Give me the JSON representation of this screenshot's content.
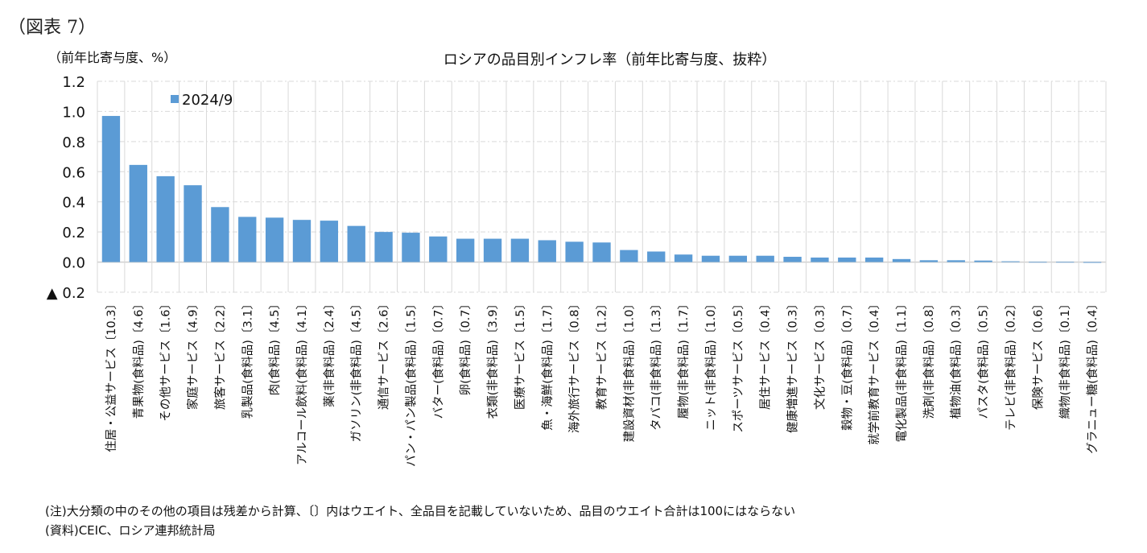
{
  "figure_label": "（図表 7）",
  "y_unit_label": "（前年比寄与度、%）",
  "notes": {
    "note": "(注)大分類の中のその他の項目は残差から計算、〔〕内はウエイト、全品目を記載していないため、品目のウエイト合計は100にはならない",
    "source": "(資料)CEIC、ロシア連邦統計局"
  },
  "colors": {
    "bar": "#5b9bd5",
    "grid": "#d9d9d9"
  },
  "chart_data": {
    "type": "bar",
    "title": "ロシアの品目別インフレ率（前年比寄与度、抜粋）",
    "xlabel": "",
    "ylabel": "（前年比寄与度、%）",
    "ylim": [
      -0.2,
      1.2
    ],
    "yticks": [
      1.2,
      1.0,
      0.8,
      0.6,
      0.4,
      0.2,
      0.0,
      -0.2
    ],
    "ytick_labels": [
      "1.2",
      "1.0",
      "0.8",
      "0.6",
      "0.4",
      "0.2",
      "0.0",
      "▲ 0.2"
    ],
    "grid": true,
    "legend_position": "top-left",
    "categories": [
      "住居・公益サービス〔10.3〕",
      "青果物(食料品)〔4.6〕",
      "その他サービス〔1.6〕",
      "家庭サービス〔4.9〕",
      "旅客サービス〔2.2〕",
      "乳製品(食料品)〔3.1〕",
      "肉(食料品)〔4.5〕",
      "アルコール飲料(食料品)〔4.1〕",
      "薬(非食料品)〔2.4〕",
      "ガソリン(非食料品)〔4.5〕",
      "通信サービス〔2.6〕",
      "パン・パン製品(食料品)〔1.5〕",
      "バター(食料品)〔0.7〕",
      "卵(食料品)〔0.7〕",
      "衣類(非食料品)〔3.9〕",
      "医療サービス〔1.5〕",
      "魚・海鮮(食料品)〔1.7〕",
      "海外旅行サービス〔0.8〕",
      "教育サービス〔1.2〕",
      "建設資材(非食料品)〔1.0〕",
      "タバコ(非食料品)〔1.3〕",
      "履物(非食料品)〔1.7〕",
      "ニット(非食料品)〔1.0〕",
      "スポーツサービス〔0.5〕",
      "居住サービス〔0.4〕",
      "健康増進サービス〔0.3〕",
      "文化サービス〔0.3〕",
      "穀物・豆(食料品)〔0.7〕",
      "就学前教育サービス〔0.4〕",
      "電化製品(非食料品)〔1.1〕",
      "洗剤(非食料品)〔0.8〕",
      "植物油(食料品)〔0.3〕",
      "パスタ(食料品)〔0.5〕",
      "テレビ(非食料品)〔0.2〕",
      "保険サービス〔0.6〕",
      "織物(非食料品)〔0.1〕",
      "グラニュー糖(食料品)〔0.4〕"
    ],
    "series": [
      {
        "name": "2024/9",
        "values": [
          0.97,
          0.645,
          0.57,
          0.51,
          0.365,
          0.3,
          0.295,
          0.28,
          0.275,
          0.24,
          0.2,
          0.195,
          0.17,
          0.155,
          0.155,
          0.155,
          0.145,
          0.135,
          0.13,
          0.08,
          0.07,
          0.05,
          0.042,
          0.042,
          0.042,
          0.035,
          0.03,
          0.03,
          0.03,
          0.02,
          0.012,
          0.012,
          0.01,
          0.005,
          0.001,
          0.001,
          -0.005
        ]
      }
    ]
  }
}
